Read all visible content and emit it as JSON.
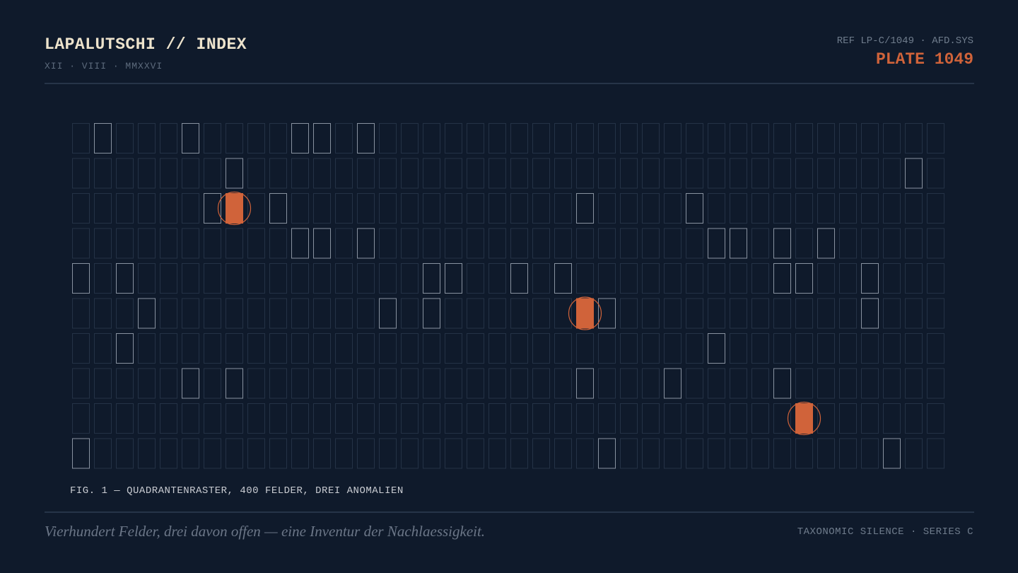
{
  "header": {
    "title": "LAPALUTSCHI // INDEX",
    "subtitle": "XII · VIII · MMXXVI",
    "ref": "REF LP-C/1049 · AFD.SYS",
    "plate": "PLATE 1049"
  },
  "grid": {
    "rows": 10,
    "columns": 40,
    "marked": [
      [
        0,
        1
      ],
      [
        0,
        5
      ],
      [
        0,
        10
      ],
      [
        0,
        11
      ],
      [
        0,
        13
      ],
      [
        1,
        7
      ],
      [
        1,
        38
      ],
      [
        2,
        6
      ],
      [
        2,
        9
      ],
      [
        2,
        23
      ],
      [
        2,
        28
      ],
      [
        3,
        10
      ],
      [
        3,
        11
      ],
      [
        3,
        13
      ],
      [
        3,
        29
      ],
      [
        3,
        30
      ],
      [
        3,
        32
      ],
      [
        3,
        34
      ],
      [
        4,
        0
      ],
      [
        4,
        2
      ],
      [
        4,
        16
      ],
      [
        4,
        17
      ],
      [
        4,
        20
      ],
      [
        4,
        22
      ],
      [
        4,
        32
      ],
      [
        4,
        33
      ],
      [
        4,
        36
      ],
      [
        5,
        3
      ],
      [
        5,
        14
      ],
      [
        5,
        16
      ],
      [
        5,
        24
      ],
      [
        5,
        36
      ],
      [
        6,
        2
      ],
      [
        6,
        29
      ],
      [
        7,
        5
      ],
      [
        7,
        7
      ],
      [
        7,
        23
      ],
      [
        7,
        27
      ],
      [
        7,
        32
      ],
      [
        9,
        0
      ],
      [
        9,
        24
      ],
      [
        9,
        37
      ]
    ],
    "anomalies": [
      [
        2,
        7
      ],
      [
        5,
        23
      ],
      [
        8,
        33
      ]
    ]
  },
  "caption": "FIG. 1 — QUADRANTENRASTER, 400 FELDER, DREI ANOMALIEN",
  "footer": {
    "quote": "Vierhundert Felder, drei davon offen — eine Inventur der Nachlaessigkeit.",
    "series": "TAXONOMIC SILENCE · SERIES C"
  }
}
